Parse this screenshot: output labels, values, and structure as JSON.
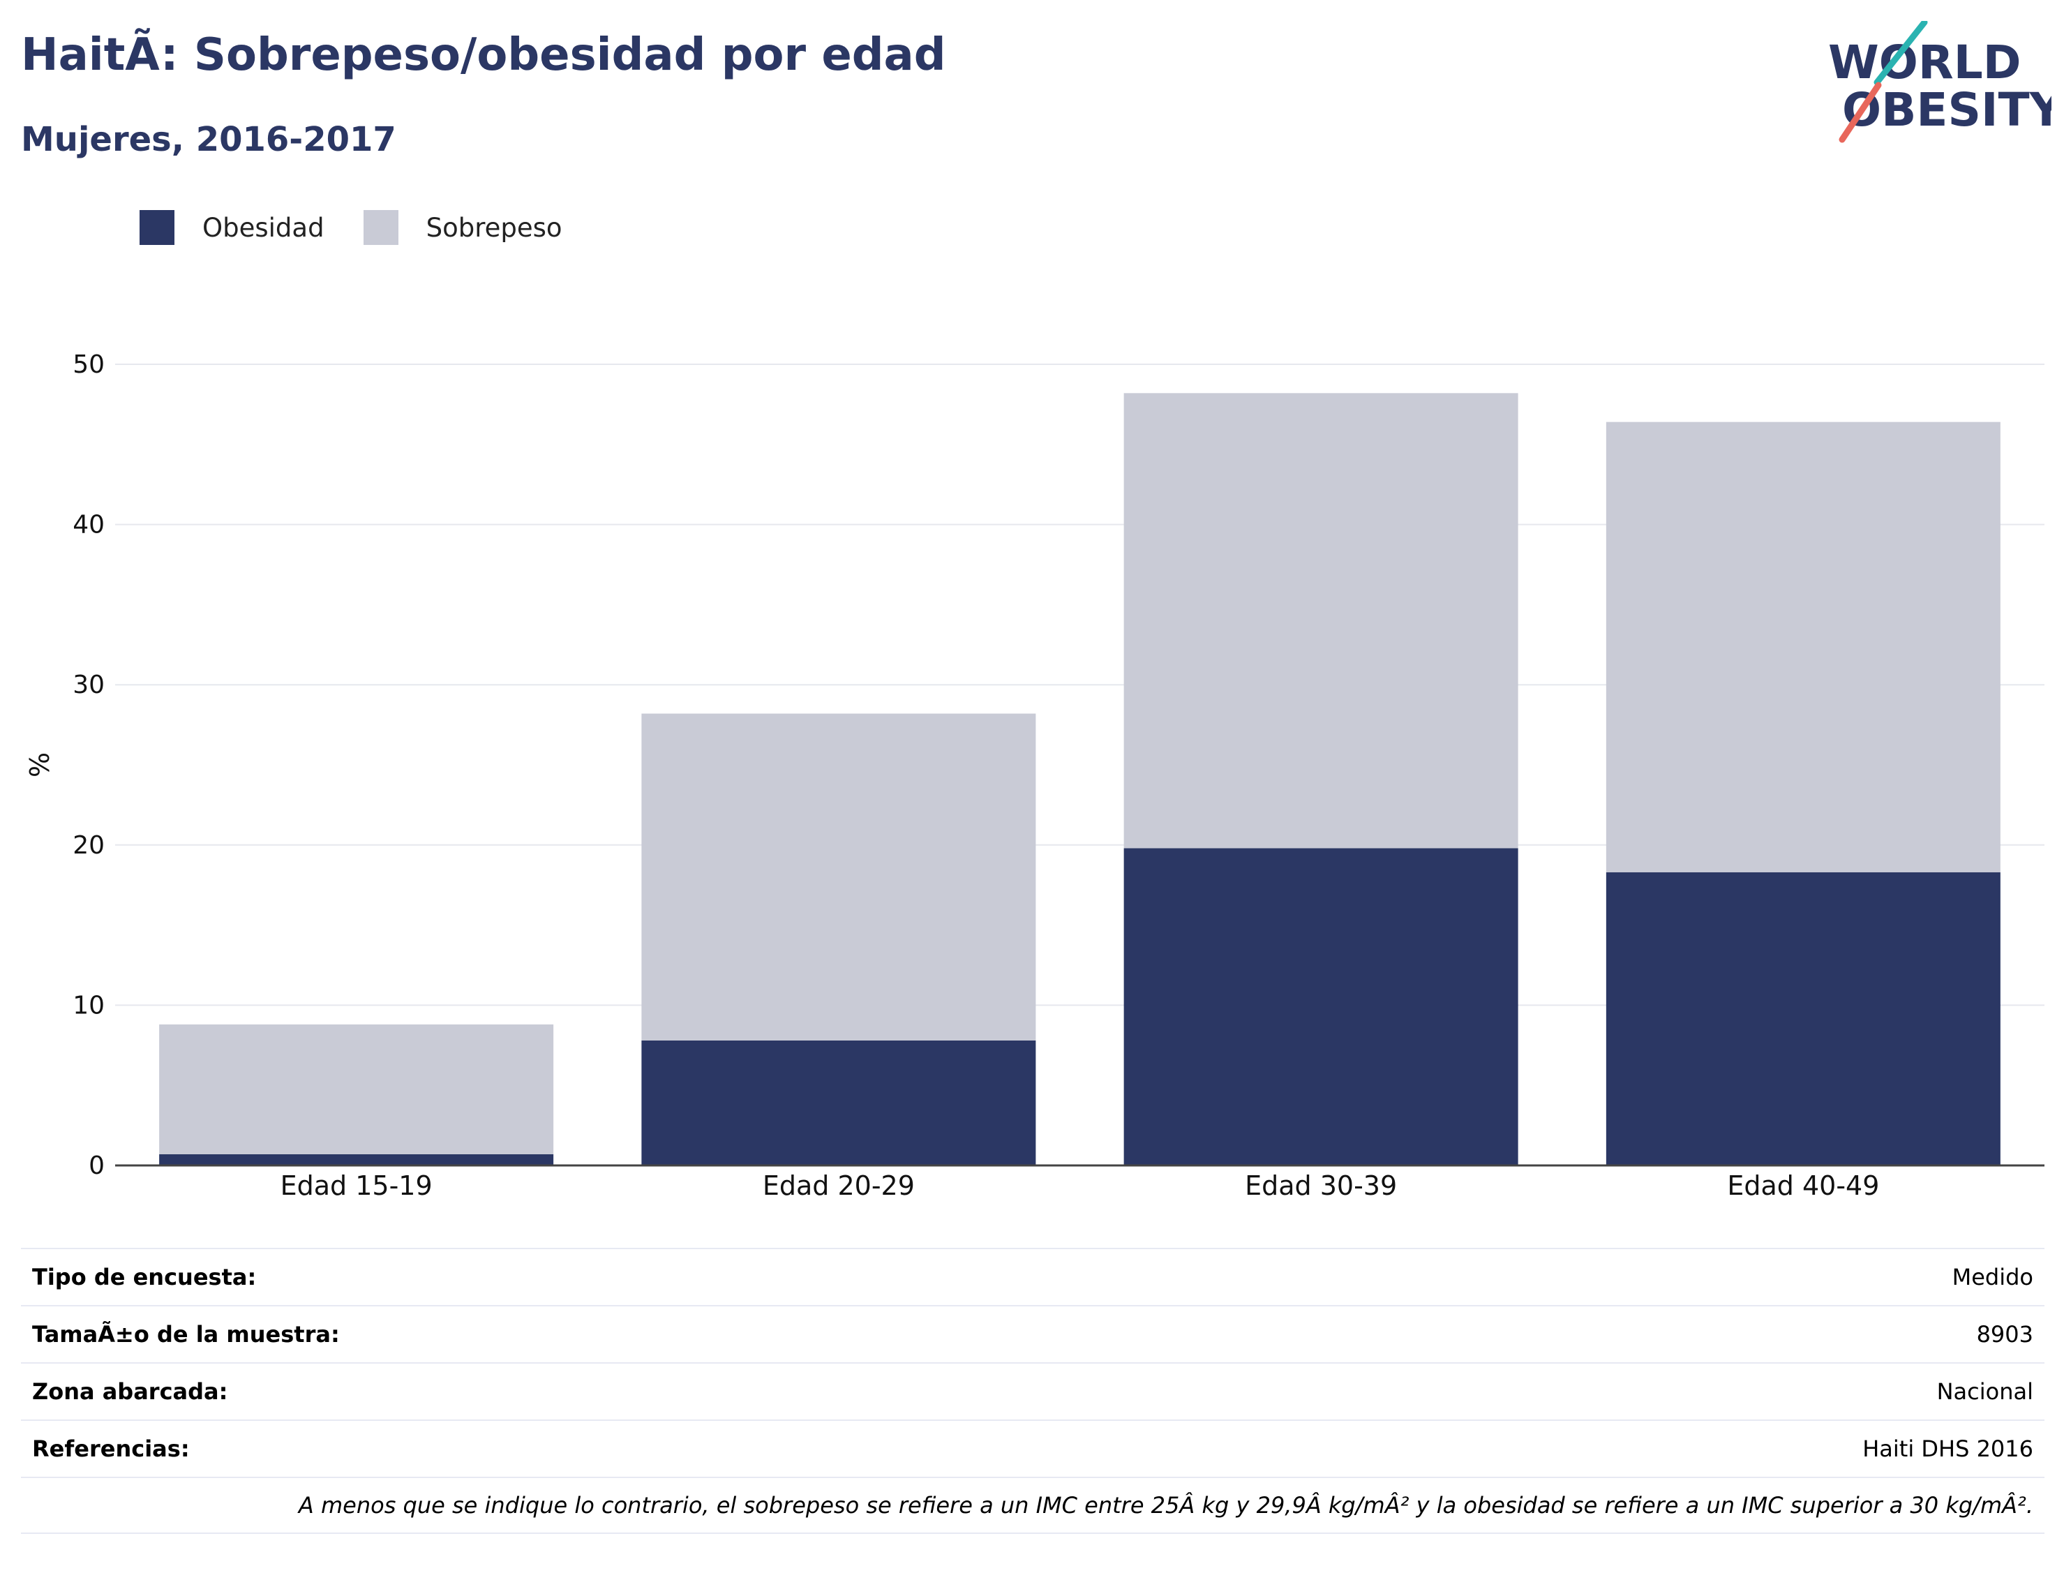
{
  "header": {
    "title": "HaitÃ: Sobrepeso/obesidad por edad",
    "subtitle": "Mujeres, 2016-2017",
    "logo": {
      "line1": "WORLD",
      "line2": "OBESITY"
    }
  },
  "legend": [
    {
      "label": "Obesidad",
      "color": "#2b3764"
    },
    {
      "label": "Sobrepeso",
      "color": "#c9cbd6"
    }
  ],
  "chart_data": {
    "type": "bar",
    "stacked": true,
    "title": "",
    "xlabel": "",
    "ylabel": "%",
    "ylim": [
      0,
      52
    ],
    "yticks": [
      0,
      10,
      20,
      30,
      40,
      50
    ],
    "categories": [
      "Edad 15-19",
      "Edad 20-29",
      "Edad 30-39",
      "Edad 40-49"
    ],
    "series": [
      {
        "name": "Obesidad",
        "color": "#2b3764",
        "values": [
          0.7,
          7.8,
          19.8,
          18.3
        ]
      },
      {
        "name": "Sobrepeso",
        "color": "#c9cbd6",
        "values": [
          8.1,
          20.4,
          28.4,
          28.1
        ]
      }
    ],
    "grid": true,
    "legend_position": "top-left"
  },
  "info": [
    {
      "key": "Tipo de encuesta:",
      "value": "Medido"
    },
    {
      "key": "TamaÃ±o de la muestra:",
      "value": "8903"
    },
    {
      "key": "Zona abarcada:",
      "value": "Nacional"
    },
    {
      "key": "Referencias:",
      "value": "Haiti DHS 2016"
    }
  ],
  "note": "A menos que se indique lo contrario, el sobrepeso se refiere a un IMC entre 25Â kg y 29,9Â kg/mÂ² y la obesidad se refiere a un IMC superior a 30 kg/mÂ²."
}
